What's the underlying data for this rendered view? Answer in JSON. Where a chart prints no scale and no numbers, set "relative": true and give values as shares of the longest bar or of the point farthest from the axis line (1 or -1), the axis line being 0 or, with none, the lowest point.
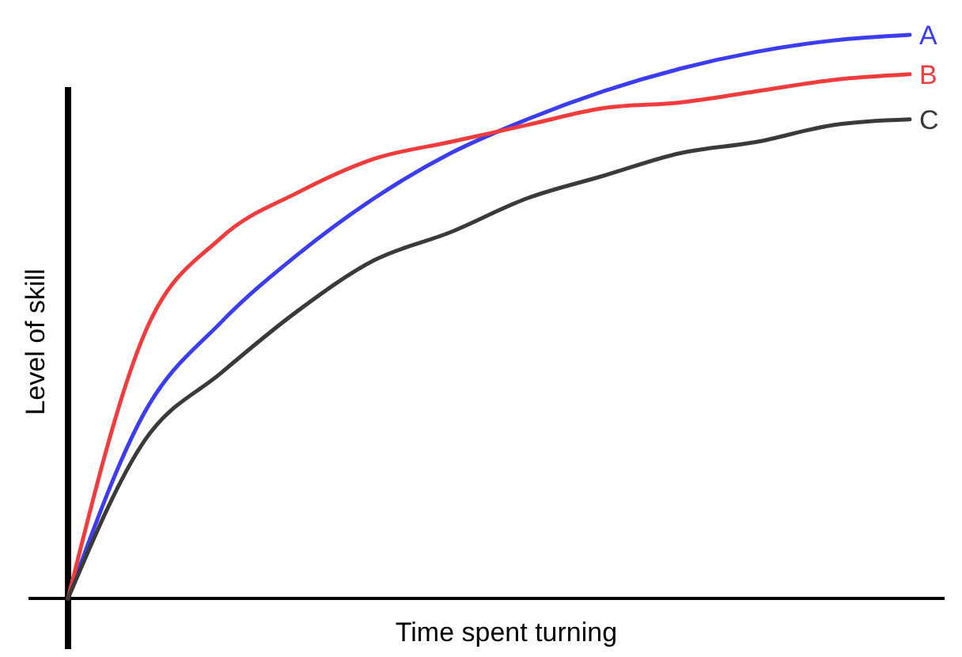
{
  "chart_data": {
    "type": "line",
    "relative": true,
    "xlabel": "Time spent turning",
    "ylabel": "Level of skill",
    "categories": [
      null,
      null,
      null,
      null,
      null,
      null,
      null,
      null,
      null,
      null,
      null,
      null
    ],
    "series": [
      {
        "name": "A",
        "color": "#3c3cf0",
        "values": [
          0,
          0.33,
          0.49,
          0.61,
          0.71,
          0.79,
          0.85,
          0.9,
          0.94,
          0.97,
          0.99,
          1
        ]
      },
      {
        "name": "B",
        "color": "#f03c3c",
        "values": [
          0,
          0.47,
          0.64,
          0.72,
          0.78,
          0.81,
          0.84,
          0.87,
          0.88,
          0.9,
          0.92,
          0.93
        ]
      },
      {
        "name": "C",
        "color": "#3a3a3a",
        "values": [
          0,
          0.28,
          0.4,
          0.51,
          0.6,
          0.65,
          0.71,
          0.75,
          0.79,
          0.81,
          0.84,
          0.85
        ]
      }
    ]
  }
}
